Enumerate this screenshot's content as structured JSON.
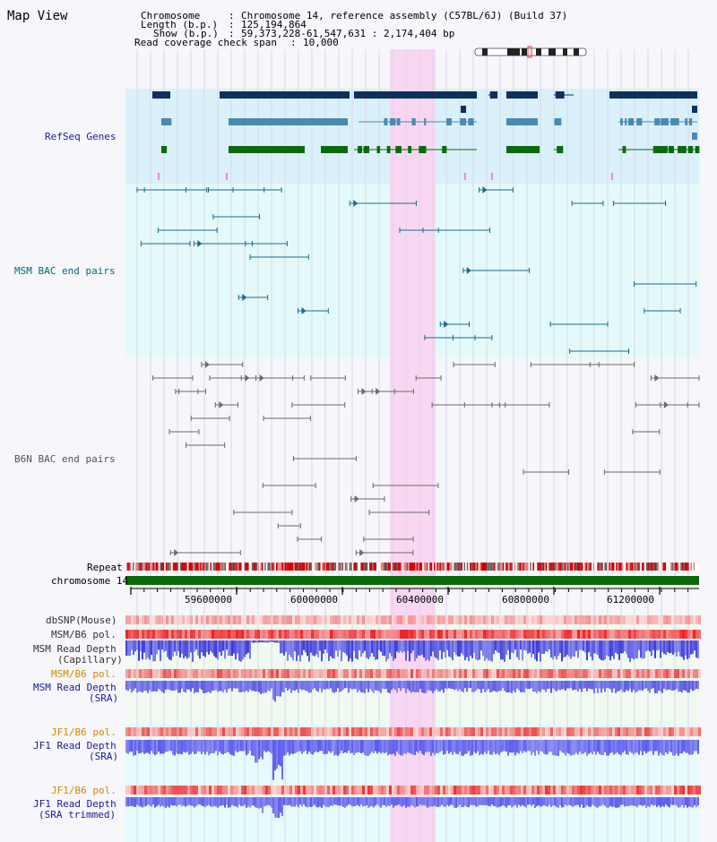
{
  "map_title": "Map View",
  "header": {
    "chromosome_key": "Chromosome",
    "chromosome_value": "Chromosome 14, reference assembly (C57BL/6J) (Build 37)",
    "length_key": "Length (b.p.)",
    "length_value": "125,194,864",
    "show_key": "Show (b.p.)",
    "show_value": "59,373,228-61,547,631 : 2,174,404 bp",
    "span_key": "Read coverage check span",
    "span_value": "10,000"
  },
  "tracks": {
    "refseq": "RefSeq Genes",
    "msm_bac": "MSM BAC end pairs",
    "b6n_bac": "B6N BAC end pairs",
    "repeat": "Repeat",
    "chromosome": "chromosome 14",
    "dbsnp": "dbSNP(Mouse)",
    "msm_pol_1": "MSM/B6 pol.",
    "msm_depth_cap_1": "MSM Read Depth",
    "msm_depth_cap_2": "(Capillary)",
    "msm_pol_2": "MSM/B6 pol.",
    "msm_depth_sra_1": "MSM Read Depth",
    "msm_depth_sra_2": "(SRA)",
    "jf1_pol_1": "JF1/B6 pol.",
    "jf1_depth_1": "JF1 Read Depth",
    "jf1_depth_2": "(SRA)",
    "jf1_pol_2": "JF1/B6 pol.",
    "jf1_trim_1": "JF1 Read Depth",
    "jf1_trim_2": "(SRA trimmed)"
  },
  "axis_ticks": [
    "59600000",
    "60000000",
    "60400000",
    "60800000",
    "61200000"
  ],
  "colors": {
    "refseq_bg": "#daf0fb",
    "msm_bac_bg": "#e4fafa",
    "b6n_bac_bg": "#f6f6fb",
    "highlight": "#f9d6f2",
    "gene_dark": "#0f2f5f",
    "gene_mid": "#4a8ab0",
    "gene_green": "#0a6a0a",
    "msm_bac": "#1a6a8a",
    "b6n_bac": "#6a6a6a",
    "chromosome_bar": "#0a6a0a",
    "depth_blue": "#3333ee",
    "pol_red": "#ee3333",
    "label_blue": "#1a1a9a",
    "label_orange": "#d08a00",
    "label_teal": "#006a7a"
  }
}
